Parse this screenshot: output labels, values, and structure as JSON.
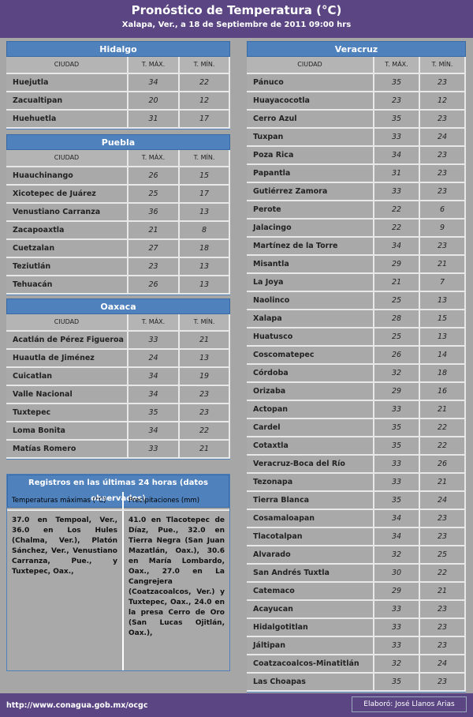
{
  "header": {
    "title": "Pronóstico de Temperatura (°C)",
    "subtitle": "Xalapa, Ver., a 18 de Septiembre de 2011 09:00 hrs"
  },
  "tables": [
    {
      "region": "Hidalgo",
      "columns": [
        "CIUDAD",
        "T. MÁX.",
        "T. MÍN."
      ],
      "rows": [
        [
          "Huejutla",
          34,
          22
        ],
        [
          "Zacualtipan",
          20,
          12
        ],
        [
          "Huehuetla",
          31,
          17
        ]
      ]
    },
    {
      "region": "Puebla",
      "columns": [
        "CIUDAD",
        "T. MÁX.",
        "T. MÍN."
      ],
      "rows": [
        [
          "Huauchinango",
          26,
          15
        ],
        [
          "Xicotepec de Juárez",
          25,
          17
        ],
        [
          "Venustiano Carranza",
          36,
          13
        ],
        [
          "Zacapoaxtla",
          21,
          8
        ],
        [
          "Cuetzalan",
          27,
          18
        ],
        [
          "Teziutlán",
          23,
          13
        ],
        [
          "Tehuacán",
          26,
          13
        ]
      ]
    },
    {
      "region": "Oaxaca",
      "columns": [
        "CIUDAD",
        "T. MÁX.",
        "T. MÍN."
      ],
      "rows": [
        [
          "Acatlán de Pérez Figueroa",
          33,
          21
        ],
        [
          "Huautla de Jiménez",
          24,
          13
        ],
        [
          "Cuicatlan",
          34,
          19
        ],
        [
          "Valle Nacional",
          34,
          23
        ],
        [
          "Tuxtepec",
          35,
          23
        ],
        [
          "Loma Bonita",
          34,
          22
        ],
        [
          "Matías Romero",
          33,
          21
        ]
      ]
    },
    {
      "region": "Veracruz",
      "columns": [
        "CIUDAD",
        "T. MÁX.",
        "T. MÍN."
      ],
      "rows": [
        [
          "Pánuco",
          35,
          23
        ],
        [
          "Huayacocotla",
          23,
          12
        ],
        [
          "Cerro Azul",
          35,
          23
        ],
        [
          "Tuxpan",
          33,
          24
        ],
        [
          "Poza Rica",
          34,
          23
        ],
        [
          "Papantla",
          31,
          23
        ],
        [
          "Gutiérrez Zamora",
          33,
          23
        ],
        [
          "Perote",
          22,
          6
        ],
        [
          "Jalacingo",
          22,
          9
        ],
        [
          "Martínez de la Torre",
          34,
          23
        ],
        [
          "Misantla",
          29,
          21
        ],
        [
          "La Joya",
          21,
          7
        ],
        [
          "Naolinco",
          25,
          13
        ],
        [
          "Xalapa",
          28,
          15
        ],
        [
          "Huatusco",
          25,
          13
        ],
        [
          "Coscomatepec",
          26,
          14
        ],
        [
          "Córdoba",
          32,
          18
        ],
        [
          "Orizaba",
          29,
          16
        ],
        [
          "Actopan",
          33,
          21
        ],
        [
          "Cardel",
          35,
          22
        ],
        [
          "Cotaxtla",
          35,
          22
        ],
        [
          "Veracruz-Boca del Río",
          33,
          26
        ],
        [
          "Tezonapa",
          33,
          21
        ],
        [
          "Tierra Blanca",
          35,
          24
        ],
        [
          "Cosamaloapan",
          34,
          23
        ],
        [
          "Tlacotalpan",
          34,
          23
        ],
        [
          "Alvarado",
          32,
          25
        ],
        [
          "San Andrés Tuxtla",
          30,
          22
        ],
        [
          "Catemaco",
          29,
          21
        ],
        [
          "Acayucan",
          33,
          23
        ],
        [
          "Hidalgotitlan",
          33,
          23
        ],
        [
          "Jáltipan",
          33,
          23
        ],
        [
          "Coatzacoalcos-Minatitlán",
          32,
          24
        ],
        [
          "Las Choapas",
          35,
          23
        ]
      ]
    }
  ],
  "records": {
    "title": "Registros en las últimas 24 horas (datos observados)",
    "headers": [
      "Temperaturas máximas (°C)",
      "Precipitaciones (mm)"
    ],
    "texts": [
      "37.0 en Tempoal, Ver., 36.0 en Los Hules (Chalma, Ver.), Platón Sánchez, Ver., Venustiano Carranza, Pue., y Tuxtepec, Oax.,",
      "41.0 en Tlacotepec de Díaz, Pue., 32.0 en Tierra Negra (San Juan Mazatlán, Oax.), 30.6 en María Lombardo, Oax., 27.0 en La Cangrejera (Coatzacoalcos, Ver.) y Tuxtepec, Oax., 24.0 en la presa Cerro de Oro (San Lucas Ojitlán, Oax.),"
    ]
  },
  "footer": {
    "url": "http://www.conagua.gob.mx/ocgc",
    "credit": "Elaboró:  José Llanos Arias"
  }
}
